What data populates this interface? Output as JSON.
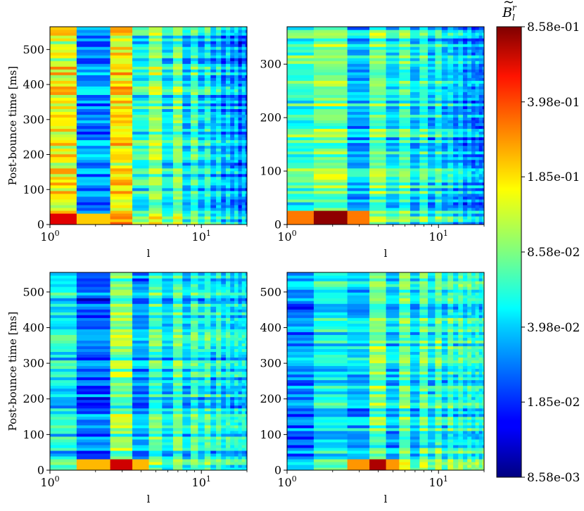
{
  "chart_data": [
    {
      "type": "heatmap",
      "panel": "top-left",
      "xlabel": "l",
      "ylabel": "Post-bounce time [ms]",
      "x_scale": "log",
      "xlim": [
        1,
        20
      ],
      "ylim": [
        0,
        565
      ],
      "x_ticks": [
        1,
        10
      ],
      "x_tick_labels": [
        "10^0",
        "10^1"
      ],
      "y_ticks": [
        0,
        100,
        200,
        300,
        400,
        500
      ],
      "y_tick_labels": [
        "0",
        "100",
        "200",
        "300",
        "400",
        "500"
      ],
      "l_values": [
        1,
        2,
        3,
        4,
        5,
        6,
        7,
        8,
        9,
        10,
        11,
        12,
        13,
        14,
        15,
        16,
        17,
        18,
        19,
        20
      ],
      "mode_amplitude": [
        0.16,
        0.03,
        0.18,
        0.06,
        0.1,
        0.05,
        0.09,
        0.04,
        0.07,
        0.04,
        0.06,
        0.035,
        0.05,
        0.03,
        0.045,
        0.03,
        0.04,
        0.025,
        0.035,
        0.025
      ],
      "early_peak": {
        "l": 1,
        "time_ms": 8,
        "value": 0.55
      }
    },
    {
      "type": "heatmap",
      "panel": "top-right",
      "xlabel": "l",
      "ylabel": "",
      "x_scale": "log",
      "xlim": [
        1,
        20
      ],
      "ylim": [
        0,
        370
      ],
      "x_ticks": [
        1,
        10
      ],
      "x_tick_labels": [
        "10^0",
        "10^1"
      ],
      "y_ticks": [
        0,
        100,
        200,
        300
      ],
      "y_tick_labels": [
        "0",
        "100",
        "200",
        "300"
      ],
      "l_values": [
        1,
        2,
        3,
        4,
        5,
        6,
        7,
        8,
        9,
        10,
        11,
        12,
        13,
        14,
        15,
        16,
        17,
        18,
        19,
        20
      ],
      "mode_amplitude": [
        0.07,
        0.1,
        0.04,
        0.09,
        0.05,
        0.08,
        0.045,
        0.07,
        0.04,
        0.06,
        0.04,
        0.05,
        0.035,
        0.045,
        0.03,
        0.04,
        0.03,
        0.035,
        0.03,
        0.03
      ],
      "early_peak": {
        "l": 2,
        "time_ms": 8,
        "value": 0.8
      }
    },
    {
      "type": "heatmap",
      "panel": "bottom-left",
      "xlabel": "l",
      "ylabel": "Post-bounce time [ms]",
      "x_scale": "log",
      "xlim": [
        1,
        20
      ],
      "ylim": [
        0,
        555
      ],
      "x_ticks": [
        1,
        10
      ],
      "x_tick_labels": [
        "10^0",
        "10^1"
      ],
      "y_ticks": [
        0,
        100,
        200,
        300,
        400,
        500
      ],
      "y_tick_labels": [
        "0",
        "100",
        "200",
        "300",
        "400",
        "500"
      ],
      "l_values": [
        1,
        2,
        3,
        4,
        5,
        6,
        7,
        8,
        9,
        10,
        11,
        12,
        13,
        14,
        15,
        16,
        17,
        18,
        19,
        20
      ],
      "mode_amplitude": [
        0.05,
        0.025,
        0.09,
        0.03,
        0.07,
        0.04,
        0.075,
        0.04,
        0.07,
        0.045,
        0.065,
        0.04,
        0.06,
        0.04,
        0.055,
        0.04,
        0.05,
        0.04,
        0.05,
        0.04
      ],
      "early_peak": {
        "l": 3,
        "time_ms": 8,
        "value": 0.6
      }
    },
    {
      "type": "heatmap",
      "panel": "bottom-right",
      "xlabel": "l",
      "ylabel": "",
      "x_scale": "log",
      "xlim": [
        1,
        20
      ],
      "ylim": [
        0,
        555
      ],
      "x_ticks": [
        1,
        10
      ],
      "x_tick_labels": [
        "10^0",
        "10^1"
      ],
      "y_ticks": [
        0,
        100,
        200,
        300,
        400,
        500
      ],
      "y_tick_labels": [
        "0",
        "100",
        "200",
        "300",
        "400",
        "500"
      ],
      "l_values": [
        1,
        2,
        3,
        4,
        5,
        6,
        7,
        8,
        9,
        10,
        11,
        12,
        13,
        14,
        15,
        16,
        17,
        18,
        19,
        20
      ],
      "mode_amplitude": [
        0.03,
        0.05,
        0.04,
        0.09,
        0.04,
        0.085,
        0.04,
        0.08,
        0.045,
        0.08,
        0.045,
        0.075,
        0.05,
        0.07,
        0.05,
        0.065,
        0.05,
        0.06,
        0.05,
        0.06
      ],
      "early_peak": {
        "l": 4,
        "time_ms": 8,
        "value": 0.7
      }
    }
  ],
  "colorbar": {
    "title_base": "B",
    "title_sub": "l",
    "title_sup": "r",
    "title_accent": "~",
    "scale": "log",
    "min": 0.00858,
    "max": 0.858,
    "colormap": "jet",
    "ticks": [
      0.858,
      0.398,
      0.185,
      0.0858,
      0.0398,
      0.0185,
      0.00858
    ],
    "tick_labels": [
      "8.58e-01",
      "3.98e-01",
      "1.85e-01",
      "8.58e-02",
      "3.98e-02",
      "1.85e-02",
      "8.58e-03"
    ]
  }
}
